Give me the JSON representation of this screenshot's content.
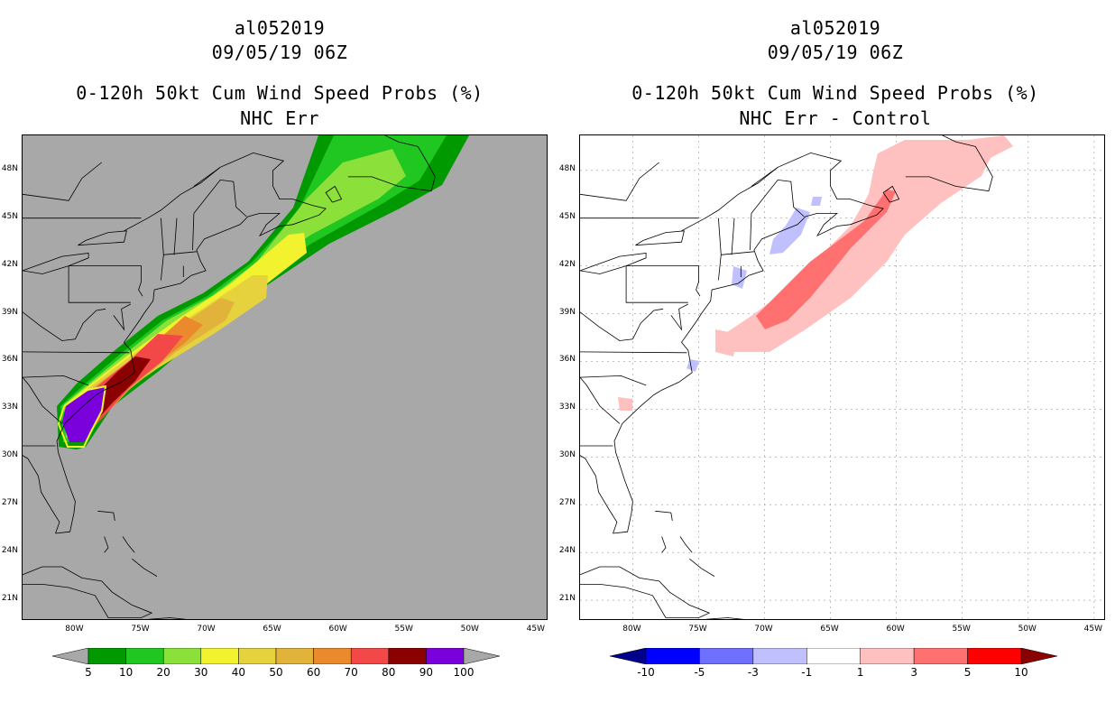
{
  "left_panel": {
    "title_line1": "al052019",
    "title_line2": "09/05/19 06Z",
    "title_line3": "0-120h 50kt Cum Wind Speed Probs (%)",
    "title_line4": "NHC Err",
    "background_color": "#a8a8a8",
    "colorbar_labels": [
      "5",
      "10",
      "20",
      "30",
      "40",
      "50",
      "60",
      "70",
      "80",
      "90",
      "100"
    ],
    "colorbar_colors": [
      "#009a00",
      "#21c721",
      "#8be03a",
      "#f2f22e",
      "#e6d23c",
      "#e2b33a",
      "#ea8a2d",
      "#f24848",
      "#8b0000",
      "#7a00dc"
    ]
  },
  "right_panel": {
    "title_line1": "al052019",
    "title_line2": "09/05/19 06Z",
    "title_line3": "0-120h 50kt Cum Wind Speed Probs (%)",
    "title_line4": "NHC Err - Control",
    "colorbar_labels": [
      "-10",
      "-5",
      "-3",
      "-1",
      "1",
      "3",
      "5",
      "10"
    ],
    "colorbar_colors": [
      "#00008b",
      "#0000ff",
      "#7070ff",
      "#c0c0ff",
      "#ffffff",
      "#ffc0c0",
      "#ff7070",
      "#ff0000",
      "#8b0000"
    ]
  },
  "axes": {
    "lat_labels": [
      "48N",
      "45N",
      "42N",
      "39N",
      "36N",
      "33N",
      "30N",
      "27N",
      "24N",
      "21N"
    ],
    "lon_labels": [
      "80W",
      "75W",
      "70W",
      "65W",
      "60W",
      "55W",
      "50W",
      "45W"
    ]
  }
}
